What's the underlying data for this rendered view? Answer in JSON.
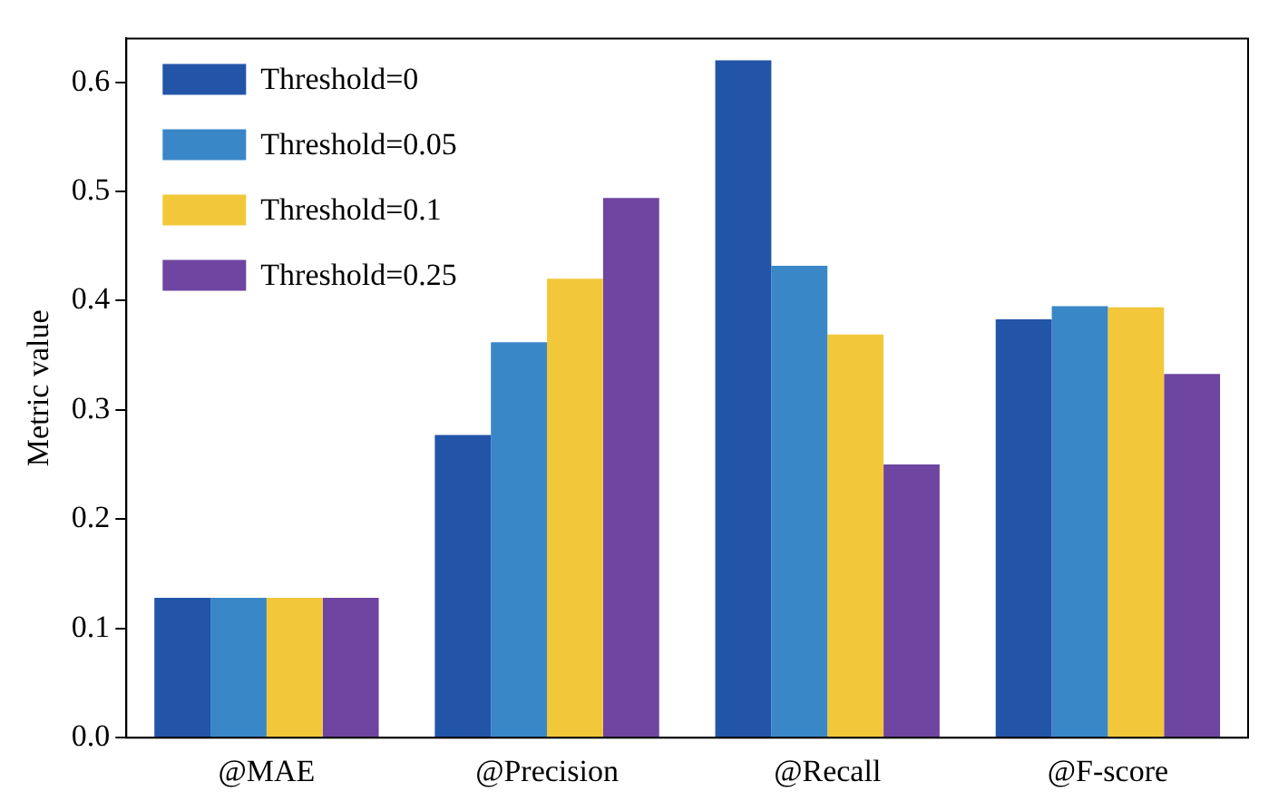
{
  "chart_data": {
    "type": "bar",
    "ylabel": "Metric value",
    "categories": [
      "@MAE",
      "@Precision",
      "@Recall",
      "@F-score"
    ],
    "series": [
      {
        "name": "Threshold=0",
        "color": "#2255a8",
        "values": [
          0.128,
          0.277,
          0.62,
          0.383
        ]
      },
      {
        "name": "Threshold=0.05",
        "color": "#3a87c8",
        "values": [
          0.128,
          0.362,
          0.432,
          0.395
        ]
      },
      {
        "name": "Threshold=0.1",
        "color": "#f2c83a",
        "values": [
          0.128,
          0.42,
          0.369,
          0.394
        ]
      },
      {
        "name": "Threshold=0.25",
        "color": "#6e45a0",
        "values": [
          0.128,
          0.494,
          0.25,
          0.333
        ]
      }
    ],
    "ylim": [
      0,
      0.64
    ],
    "yticks": [
      {
        "value": 0,
        "label": "0.0"
      },
      0.1,
      0.2,
      0.3,
      0.4,
      0.5,
      0.6
    ],
    "grid": false,
    "legend": "top left"
  }
}
